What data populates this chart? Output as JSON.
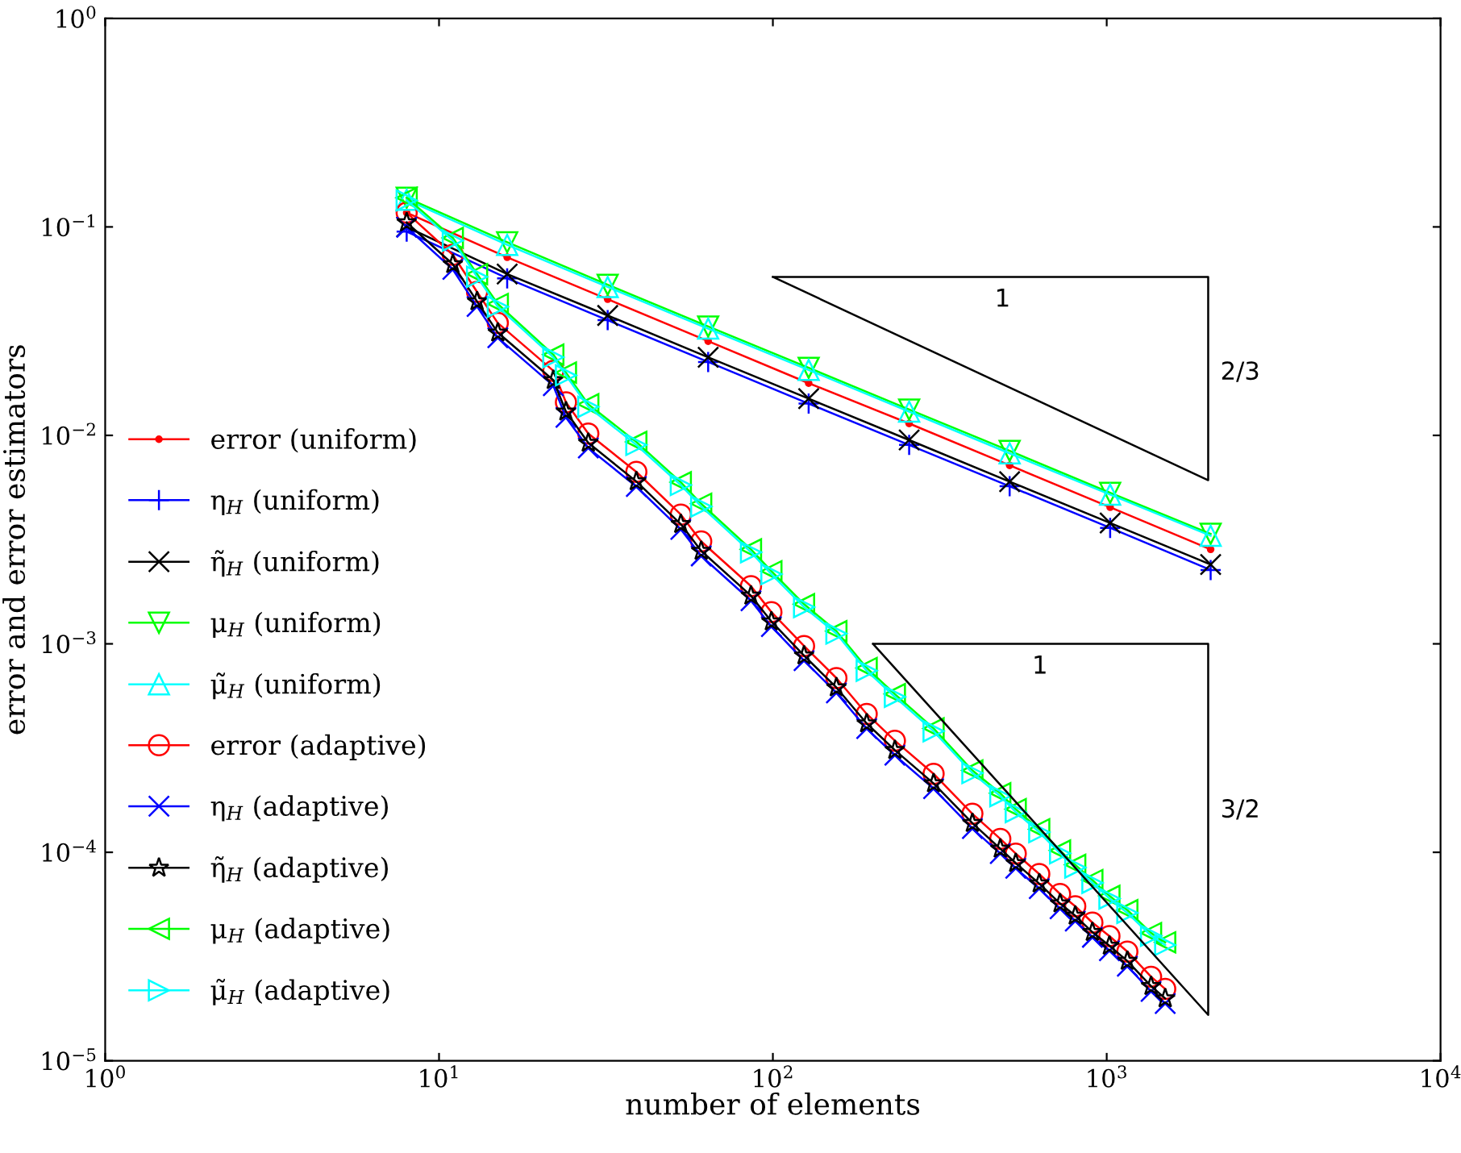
{
  "chart_data": {
    "type": "line",
    "log": "xy",
    "xlabel": "number of elements",
    "ylabel": "error and error estimators",
    "xlim": [
      1,
      10000
    ],
    "ylim": [
      1e-05,
      1
    ],
    "xticks": [
      {
        "value": 1,
        "label": "10$^{0}$"
      },
      {
        "value": 10,
        "label": "10$^{1}$"
      },
      {
        "value": 100,
        "label": "10$^{2}$"
      },
      {
        "value": 1000,
        "label": "10$^{3}$"
      },
      {
        "value": 10000,
        "label": "10$^{4}$"
      }
    ],
    "yticks": [
      {
        "value": 1e-05,
        "label": "10$^{−5}$"
      },
      {
        "value": 0.0001,
        "label": "10$^{−4}$"
      },
      {
        "value": 0.001,
        "label": "10$^{−3}$"
      },
      {
        "value": 0.01,
        "label": "10$^{−2}$"
      },
      {
        "value": 0.1,
        "label": "10$^{−1}$"
      },
      {
        "value": 1,
        "label": "10$^{0}$"
      }
    ],
    "grid": false,
    "legend": "left",
    "series": [
      {
        "name": "error (uniform)",
        "color": "#ff0000",
        "marker": "point",
        "x": [
          8,
          16,
          32,
          64,
          128,
          256,
          512,
          1024,
          2048
        ],
        "values": [
          0.117,
          0.0715,
          0.045,
          0.0283,
          0.0178,
          0.0114,
          0.00718,
          0.00452,
          0.00284
        ]
      },
      {
        "name": "η$_{H}$ (uniform)",
        "color": "#0000ff",
        "marker": "plus",
        "x": [
          8,
          16,
          32,
          64,
          128,
          256,
          512,
          1024,
          2048
        ],
        "values": [
          0.095,
          0.0567,
          0.0357,
          0.0225,
          0.0142,
          0.009,
          0.0057,
          0.0036,
          0.00226
        ]
      },
      {
        "name": "η̃$_{H}$ (uniform)",
        "color": "#000000",
        "marker": "x",
        "x": [
          8,
          16,
          32,
          64,
          128,
          256,
          512,
          1024,
          2048
        ],
        "values": [
          0.1,
          0.0594,
          0.0376,
          0.0237,
          0.015,
          0.0095,
          0.006,
          0.0038,
          0.0024
        ]
      },
      {
        "name": "μ$_{H}$ (uniform)",
        "color": "#00ff00",
        "marker": "triangle_down",
        "x": [
          8,
          16,
          32,
          64,
          128,
          256,
          512,
          1024,
          2048
        ],
        "values": [
          0.138,
          0.0844,
          0.0528,
          0.0333,
          0.0211,
          0.0133,
          0.00843,
          0.0053,
          0.00337
        ]
      },
      {
        "name": "μ̃$_{H}$ (uniform)",
        "color": "#00ffff",
        "marker": "triangle_up",
        "x": [
          8,
          16,
          32,
          64,
          128,
          256,
          512,
          1024,
          2048
        ],
        "values": [
          0.135,
          0.082,
          0.0515,
          0.0325,
          0.0206,
          0.013,
          0.0082,
          0.0052,
          0.0033
        ]
      },
      {
        "name": "error (adaptive)",
        "color": "#ff0000",
        "marker": "circle",
        "x": [
          8,
          11,
          13,
          15,
          22,
          24,
          28,
          39,
          53,
          61,
          86,
          99,
          124,
          155,
          191,
          232,
          303,
          396,
          480,
          534,
          628,
          725,
          805,
          906,
          1019,
          1153,
          1358,
          1497
        ],
        "values": [
          0.117,
          0.0735,
          0.0488,
          0.0346,
          0.0204,
          0.0144,
          0.0102,
          0.00668,
          0.00417,
          0.0031,
          0.00189,
          0.00142,
          0.000976,
          0.000685,
          0.000461,
          0.000343,
          0.000238,
          0.000153,
          0.000116,
          9.86e-05,
          7.87e-05,
          6.31e-05,
          5.51e-05,
          4.6e-05,
          3.96e-05,
          3.34e-05,
          2.53e-05,
          2.21e-05
        ]
      },
      {
        "name": "η$_{H}$ (adaptive)",
        "color": "#0000ff",
        "marker": "cross",
        "x": [
          8,
          11,
          13,
          15,
          22,
          24,
          28,
          39,
          53,
          61,
          86,
          99,
          124,
          155,
          191,
          232,
          303,
          396,
          480,
          534,
          628,
          725,
          805,
          906,
          1019,
          1153,
          1358,
          1497
        ],
        "values": [
          0.0995,
          0.0625,
          0.0415,
          0.0294,
          0.0173,
          0.0122,
          0.0087,
          0.00568,
          0.00354,
          0.00264,
          0.00161,
          0.00121,
          0.00083,
          0.000582,
          0.000392,
          0.000292,
          0.000202,
          0.00013,
          9.86e-05,
          8.38e-05,
          6.69e-05,
          5.36e-05,
          4.68e-05,
          3.91e-05,
          3.37e-05,
          2.84e-05,
          2.15e-05,
          1.88e-05
        ]
      },
      {
        "name": "η̃$_{H}$ (adaptive)",
        "color": "#000000",
        "marker": "star",
        "x": [
          8,
          11,
          13,
          15,
          22,
          24,
          28,
          39,
          53,
          61,
          86,
          99,
          124,
          155,
          191,
          232,
          303,
          396,
          480,
          534,
          628,
          725,
          805,
          906,
          1019,
          1153,
          1358,
          1497
        ],
        "values": [
          0.105,
          0.0662,
          0.0439,
          0.0311,
          0.0184,
          0.013,
          0.0092,
          0.00601,
          0.00375,
          0.00279,
          0.0017,
          0.00128,
          0.000878,
          0.000617,
          0.000415,
          0.000309,
          0.000214,
          0.000138,
          0.000104,
          8.87e-05,
          7.08e-05,
          5.68e-05,
          4.96e-05,
          4.14e-05,
          3.56e-05,
          3.01e-05,
          2.28e-05,
          1.99e-05
        ]
      },
      {
        "name": "μ$_{H}$ (adaptive)",
        "color": "#00ff00",
        "marker": "triangle_left",
        "x": [
          8,
          11,
          13,
          15,
          22,
          24,
          28,
          39,
          53,
          61,
          86,
          99,
          124,
          155,
          191,
          232,
          303,
          396,
          480,
          534,
          628,
          725,
          805,
          906,
          1019,
          1153,
          1358,
          1497
        ],
        "values": [
          0.138,
          0.0886,
          0.0594,
          0.0427,
          0.0244,
          0.02,
          0.0141,
          0.0093,
          0.00596,
          0.0047,
          0.00284,
          0.00223,
          0.00155,
          0.00115,
          0.000766,
          0.000574,
          0.000393,
          0.000247,
          0.000192,
          0.000161,
          0.000129,
          0.000102,
          8.71e-05,
          7.36e-05,
          6.18e-05,
          5.28e-05,
          4.1e-05,
          3.7e-05
        ]
      },
      {
        "name": "μ̃$_{H}$ (adaptive)",
        "color": "#00ffff",
        "marker": "triangle_right",
        "x": [
          8,
          11,
          13,
          15,
          22,
          24,
          28,
          39,
          53,
          61,
          86,
          99,
          124,
          155,
          191,
          232,
          303,
          396,
          480,
          534,
          628,
          725,
          805,
          906,
          1019,
          1153,
          1358,
          1497
        ],
        "values": [
          0.134,
          0.086,
          0.0576,
          0.0414,
          0.0237,
          0.0194,
          0.0137,
          0.009,
          0.00578,
          0.00456,
          0.00275,
          0.00216,
          0.0015,
          0.00112,
          0.000743,
          0.000557,
          0.000381,
          0.00024,
          0.000186,
          0.000156,
          0.000125,
          9.89e-05,
          8.45e-05,
          7.14e-05,
          6e-05,
          5.12e-05,
          3.98e-05,
          3.59e-05
        ]
      }
    ],
    "annotations": [
      "1",
      "2/3",
      "1",
      "3/2"
    ]
  }
}
